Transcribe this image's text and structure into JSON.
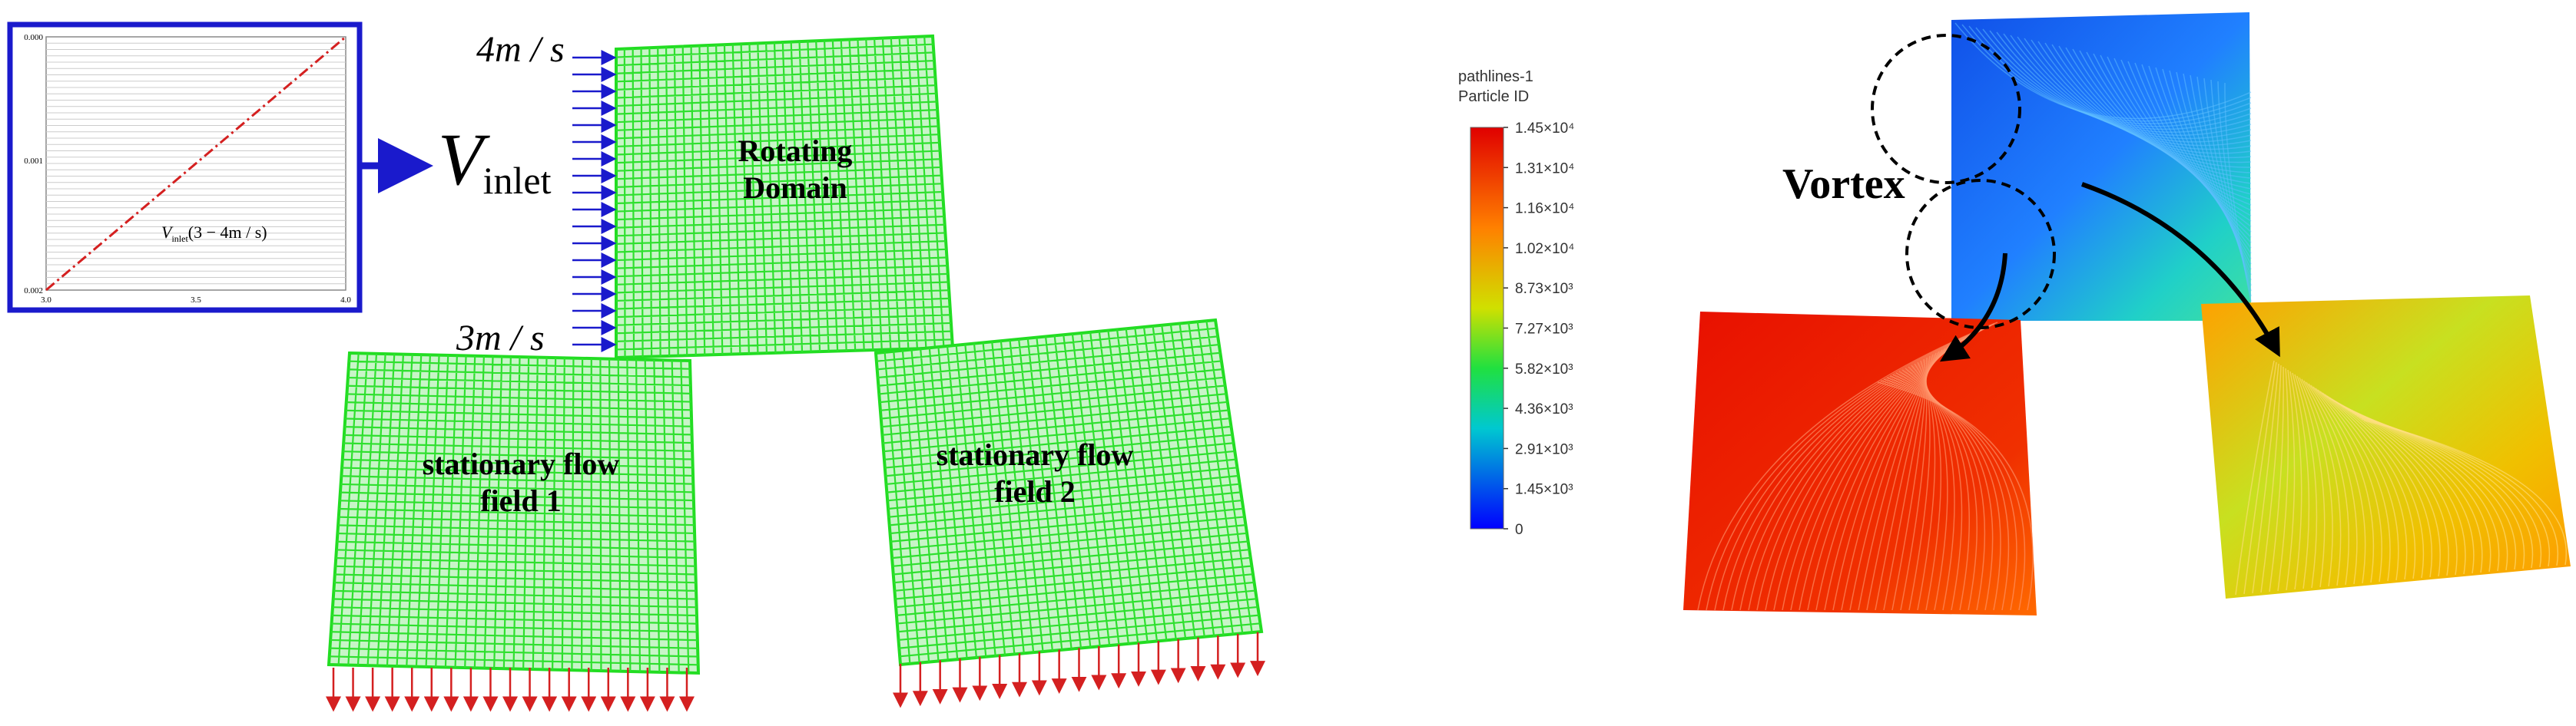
{
  "inset": {
    "y_labels": [
      "0.000",
      "0.001",
      "0.002"
    ],
    "x_labels": [
      "3.0",
      "3.5",
      "4.0"
    ],
    "label_main": "V",
    "label_sub": "inlet",
    "label_rest": "(3 − 4m / s)"
  },
  "inlet": {
    "label_main": "V",
    "label_sub": "inlet",
    "top_speed": "4m / s",
    "bottom_speed": "3m / s"
  },
  "domains": {
    "rotating": [
      "Rotating",
      "Domain"
    ],
    "stationary_1": [
      "stationary flow",
      "field 1"
    ],
    "stationary_2": [
      "stationary flow",
      "field 2"
    ]
  },
  "colorbar": {
    "title": "pathlines-1",
    "subtitle": "Particle ID",
    "ticks": [
      "1.45×10⁴",
      "1.31×10⁴",
      "1.16×10⁴",
      "1.02×10⁴",
      "8.73×10³",
      "7.27×10³",
      "5.82×10³",
      "4.36×10³",
      "2.91×10³",
      "1.45×10³",
      "0"
    ]
  },
  "annotation": "Vortex"
}
